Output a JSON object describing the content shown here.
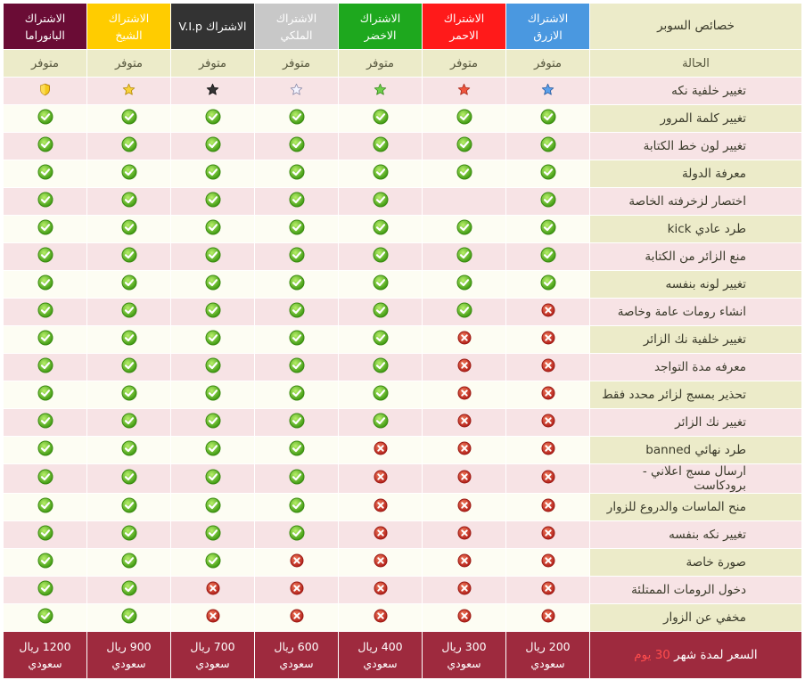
{
  "colors": {
    "panorama": "#6a0c35",
    "sheikh": "#ffcc00",
    "vip": "#333333",
    "royal": "#c8c8c8",
    "green": "#1ea81e",
    "red": "#ff1a1a",
    "blue": "#4a98e0",
    "feature_header_bg": "#ecebc9",
    "price_bg": "#9e2a3e"
  },
  "header": {
    "feature_col": "خصائص السوبر",
    "plans": [
      {
        "id": "panorama",
        "line1": "الاشتراك",
        "line2": "البانوراما"
      },
      {
        "id": "sheikh",
        "line1": "الاشتراك",
        "line2": "الشيخ"
      },
      {
        "id": "vip",
        "line1": "الاشتراك V.I.p",
        "line2": ""
      },
      {
        "id": "royal",
        "line1": "الاشتراك",
        "line2": "الملكي"
      },
      {
        "id": "green",
        "line1": "الاشتراك",
        "line2": "الاخضر"
      },
      {
        "id": "red",
        "line1": "الاشتراك",
        "line2": "الاحمر"
      },
      {
        "id": "blue",
        "line1": "الاشتراك",
        "line2": "الازرق"
      }
    ]
  },
  "status_row": {
    "label": "الحالة",
    "values": [
      "متوفر",
      "متوفر",
      "متوفر",
      "متوفر",
      "متوفر",
      "متوفر",
      "متوفر"
    ]
  },
  "icon_legend": {
    "y": "check-icon",
    "n": "cross-icon",
    "s": "star-icon",
    "-": "empty"
  },
  "features": [
    {
      "label": "تغيير خلفية نكه",
      "cells": [
        "shield-gold",
        "star-gold",
        "star-black",
        "star-white",
        "star-green",
        "star-red",
        "star-blue"
      ]
    },
    {
      "label": "تغيير كلمة المرور",
      "cells": [
        "y",
        "y",
        "y",
        "y",
        "y",
        "y",
        "y"
      ]
    },
    {
      "label": "تغيير لون خط الكتابة",
      "cells": [
        "y",
        "y",
        "y",
        "y",
        "y",
        "y",
        "y"
      ]
    },
    {
      "label": "معرفة الدولة",
      "cells": [
        "y",
        "y",
        "y",
        "y",
        "y",
        "y",
        "y"
      ]
    },
    {
      "label": "اختصار لزخرفته الخاصة",
      "cells": [
        "y",
        "y",
        "y",
        "y",
        "y",
        "-",
        "y"
      ]
    },
    {
      "label": "طرد عادي kick",
      "cells": [
        "y",
        "y",
        "y",
        "y",
        "y",
        "y",
        "y"
      ]
    },
    {
      "label": "منع الزائر من الكتابة",
      "cells": [
        "y",
        "y",
        "y",
        "y",
        "y",
        "y",
        "y"
      ]
    },
    {
      "label": "تغيير لونه بنفسه",
      "cells": [
        "y",
        "y",
        "y",
        "y",
        "y",
        "y",
        "y"
      ]
    },
    {
      "label": "انشاء رومات عامة وخاصة",
      "cells": [
        "y",
        "y",
        "y",
        "y",
        "y",
        "y",
        "n"
      ]
    },
    {
      "label": "تغيير خلفية نك الزائر",
      "cells": [
        "y",
        "y",
        "y",
        "y",
        "y",
        "n",
        "n"
      ]
    },
    {
      "label": "معرفه مدة التواجد",
      "cells": [
        "y",
        "y",
        "y",
        "y",
        "y",
        "n",
        "n"
      ]
    },
    {
      "label": "تحذير بمسج لزائر محدد فقط",
      "cells": [
        "y",
        "y",
        "y",
        "y",
        "y",
        "n",
        "n"
      ]
    },
    {
      "label": "تغيير نك الزائر",
      "cells": [
        "y",
        "y",
        "y",
        "y",
        "y",
        "n",
        "n"
      ]
    },
    {
      "label": "طرد نهائي banned",
      "cells": [
        "y",
        "y",
        "y",
        "y",
        "n",
        "n",
        "n"
      ]
    },
    {
      "label": "ارسال مسج اعلاني - برودكاست",
      "cells": [
        "y",
        "y",
        "y",
        "y",
        "n",
        "n",
        "n"
      ]
    },
    {
      "label": "منح الماسات والدروع للزوار",
      "cells": [
        "y",
        "y",
        "y",
        "y",
        "n",
        "n",
        "n"
      ]
    },
    {
      "label": "تغيير نكه بنفسه",
      "cells": [
        "y",
        "y",
        "y",
        "y",
        "n",
        "n",
        "n"
      ]
    },
    {
      "label": "صورة خاصة",
      "cells": [
        "y",
        "y",
        "y",
        "n",
        "n",
        "n",
        "n"
      ]
    },
    {
      "label": "دخول الرومات الممتلئة",
      "cells": [
        "y",
        "y",
        "n",
        "n",
        "n",
        "n",
        "n"
      ]
    },
    {
      "label": "مخفي عن الزوار",
      "cells": [
        "y",
        "y",
        "n",
        "n",
        "n",
        "n",
        "n"
      ]
    }
  ],
  "price_row": {
    "label_main": "السعر لمدة شهر",
    "label_highlight": "30 يوم",
    "prices": [
      {
        "amount": "1200 ريال",
        "currency": "سعودي"
      },
      {
        "amount": "900 ريال",
        "currency": "سعودي"
      },
      {
        "amount": "700 ريال",
        "currency": "سعودي"
      },
      {
        "amount": "600 ريال",
        "currency": "سعودي"
      },
      {
        "amount": "400 ريال",
        "currency": "سعودي"
      },
      {
        "amount": "300 ريال",
        "currency": "سعودي"
      },
      {
        "amount": "200 ريال",
        "currency": "سعودي"
      }
    ]
  }
}
